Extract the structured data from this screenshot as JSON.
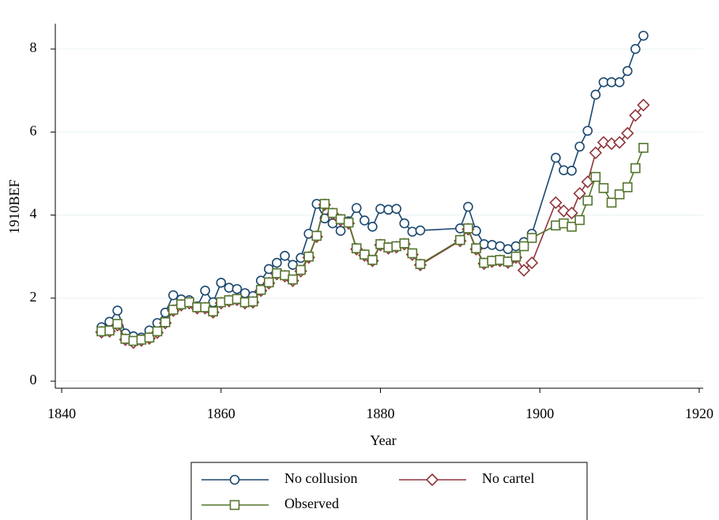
{
  "chart_data": {
    "type": "line",
    "x_label": "Year",
    "y_label": "1910BEF",
    "x": [
      1845,
      1846,
      1847,
      1848,
      1849,
      1850,
      1851,
      1852,
      1853,
      1854,
      1855,
      1856,
      1857,
      1858,
      1859,
      1860,
      1861,
      1862,
      1863,
      1864,
      1865,
      1866,
      1867,
      1868,
      1869,
      1870,
      1871,
      1872,
      1873,
      1874,
      1875,
      1876,
      1877,
      1878,
      1879,
      1880,
      1881,
      1882,
      1883,
      1884,
      1885,
      1890,
      1891,
      1892,
      1893,
      1894,
      1895,
      1896,
      1897,
      1898,
      1899,
      1902,
      1903,
      1904,
      1905,
      1906,
      1907,
      1908,
      1909,
      1910,
      1911,
      1912,
      1913
    ],
    "series": [
      {
        "name": "No collusion",
        "color": "#1a476f",
        "marker": "circle",
        "values": [
          1.3,
          1.43,
          1.7,
          1.15,
          1.08,
          1.05,
          1.22,
          1.4,
          1.65,
          2.07,
          1.97,
          1.95,
          1.8,
          2.18,
          1.9,
          2.37,
          2.25,
          2.22,
          2.12,
          2.05,
          2.42,
          2.7,
          2.85,
          3.02,
          2.8,
          2.97,
          3.55,
          4.27,
          3.92,
          3.8,
          3.62,
          3.85,
          4.17,
          3.87,
          3.72,
          4.15,
          4.13,
          4.15,
          3.8,
          3.6,
          3.63,
          3.68,
          4.2,
          3.62,
          3.3,
          3.28,
          3.25,
          3.18,
          3.25,
          3.35,
          3.55,
          5.38,
          5.08,
          5.07,
          5.65,
          6.03,
          6.9,
          7.2,
          7.2,
          7.2,
          7.47,
          8.0,
          8.32
        ]
      },
      {
        "name": "No cartel",
        "color": "#90353b",
        "marker": "diamond",
        "values": [
          1.18,
          1.2,
          1.35,
          1.0,
          0.93,
          0.98,
          1.03,
          1.17,
          1.4,
          1.7,
          1.83,
          1.88,
          1.76,
          1.76,
          1.66,
          1.88,
          1.93,
          1.96,
          1.88,
          1.9,
          2.18,
          2.36,
          2.58,
          2.53,
          2.42,
          2.65,
          2.98,
          3.48,
          4.25,
          4.03,
          3.88,
          3.8,
          3.18,
          3.03,
          2.9,
          3.28,
          3.2,
          3.23,
          3.3,
          3.05,
          2.8,
          3.38,
          3.66,
          3.18,
          2.83,
          2.88,
          2.9,
          2.86,
          2.98,
          2.67,
          2.85,
          4.3,
          4.1,
          4.05,
          4.52,
          4.8,
          5.5,
          5.75,
          5.72,
          5.75,
          5.97,
          6.4,
          6.65
        ]
      },
      {
        "name": "Observed",
        "color": "#55752f",
        "marker": "square",
        "values": [
          1.2,
          1.22,
          1.38,
          1.02,
          0.97,
          1.0,
          1.05,
          1.2,
          1.42,
          1.72,
          1.85,
          1.9,
          1.78,
          1.78,
          1.68,
          1.9,
          1.95,
          1.98,
          1.9,
          1.92,
          2.2,
          2.38,
          2.6,
          2.55,
          2.45,
          2.68,
          3.0,
          3.5,
          4.27,
          4.05,
          3.9,
          3.82,
          3.2,
          3.05,
          2.92,
          3.3,
          3.22,
          3.25,
          3.32,
          3.08,
          2.82,
          3.4,
          3.68,
          3.2,
          2.85,
          2.9,
          2.92,
          2.88,
          3.0,
          3.25,
          3.45,
          3.75,
          3.8,
          3.72,
          3.88,
          4.35,
          4.92,
          4.65,
          4.3,
          4.5,
          4.67,
          5.13,
          5.62
        ]
      }
    ],
    "xlim": [
      1839.2,
      1920.5
    ],
    "xticks": [
      1840,
      1860,
      1880,
      1900,
      1920
    ],
    "ylim": [
      -0.17,
      8.61
    ],
    "yticks": [
      0,
      2,
      4,
      6,
      8
    ],
    "grid": true
  }
}
